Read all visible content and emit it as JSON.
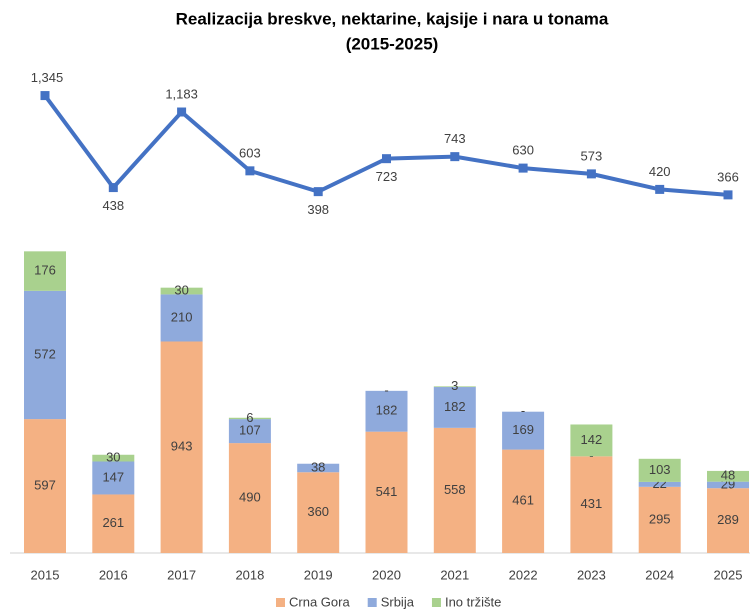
{
  "chart_data": {
    "type": "bar",
    "stacked": true,
    "title": "Realizacija breskve, nektarine, kajsije i nara u tonama",
    "subtitle": "(2015-2025)",
    "categories": [
      "2015",
      "2016",
      "2017",
      "2018",
      "2019",
      "2020",
      "2021",
      "2022",
      "2023",
      "2024",
      "2025"
    ],
    "series": [
      {
        "name": "Crna Gora",
        "color": "#f4b183",
        "values": [
          597,
          261,
          943,
          490,
          360,
          541,
          558,
          461,
          431,
          295,
          289
        ]
      },
      {
        "name": "Srbija",
        "color": "#8faadc",
        "values": [
          572,
          147,
          210,
          107,
          38,
          182,
          182,
          169,
          0,
          22,
          29
        ],
        "value_labels": [
          "572",
          "147",
          "210",
          "107",
          "38",
          "182",
          "182",
          "169",
          "-",
          "22",
          "29"
        ]
      },
      {
        "name": "Ino tržište",
        "color": "#a9d18e",
        "values": [
          176,
          30,
          30,
          6,
          0,
          0,
          3,
          0,
          142,
          103,
          48
        ],
        "value_labels": [
          "176",
          "30",
          "30",
          "6",
          null,
          "-",
          "3",
          "-",
          "142",
          "103",
          "48"
        ]
      }
    ],
    "line": {
      "type": "line",
      "color": "#4472c4",
      "axis": "y2",
      "values": [
        1345,
        438,
        1183,
        603,
        398,
        723,
        743,
        630,
        573,
        420,
        366
      ],
      "value_labels": [
        "1,345",
        "438",
        "1,183",
        "603",
        "398",
        "723",
        "743",
        "630",
        "573",
        "420",
        "366"
      ]
    },
    "ylim": [
      0,
      1400
    ],
    "y2lim": [
      0,
      1400
    ],
    "legend": "bottom"
  }
}
